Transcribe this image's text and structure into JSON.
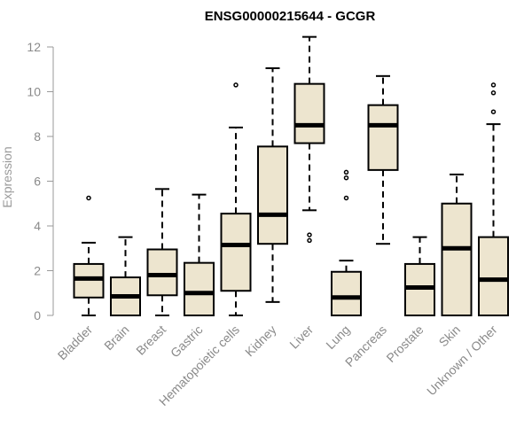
{
  "colors": {
    "box_fill": "#ede5cf",
    "box_stroke": "#000000",
    "axis": "#999999",
    "text": "#8a8a8a"
  },
  "chart_data": {
    "type": "boxplot",
    "title": "ENSG00000215644 - GCGR",
    "ylabel": "Expression",
    "xlabel": "",
    "ylim": [
      0,
      12
    ],
    "yticks": [
      0,
      2,
      4,
      6,
      8,
      10,
      12
    ],
    "grid": false,
    "categories": [
      "Bladder",
      "Brain",
      "Breast",
      "Gastric",
      "Hematopoietic cells",
      "Kidney",
      "Liver",
      "Lung",
      "Pancreas",
      "Prostate",
      "Skin",
      "Unknown / Other"
    ],
    "boxes": [
      {
        "category": "Bladder",
        "whisker_low": 0.0,
        "q1": 0.8,
        "median": 1.65,
        "q3": 2.3,
        "whisker_high": 3.25,
        "outliers": [
          5.25
        ]
      },
      {
        "category": "Brain",
        "whisker_low": 0.0,
        "q1": 0.0,
        "median": 0.85,
        "q3": 1.7,
        "whisker_high": 3.5,
        "outliers": []
      },
      {
        "category": "Breast",
        "whisker_low": 0.0,
        "q1": 0.9,
        "median": 1.8,
        "q3": 2.95,
        "whisker_high": 5.65,
        "outliers": []
      },
      {
        "category": "Gastric",
        "whisker_low": 0.0,
        "q1": 0.0,
        "median": 1.0,
        "q3": 2.35,
        "whisker_high": 5.4,
        "outliers": []
      },
      {
        "category": "Hematopoietic cells",
        "whisker_low": 0.0,
        "q1": 1.1,
        "median": 3.15,
        "q3": 4.55,
        "whisker_high": 8.4,
        "outliers": [
          10.3
        ]
      },
      {
        "category": "Kidney",
        "whisker_low": 0.6,
        "q1": 3.2,
        "median": 4.5,
        "q3": 7.55,
        "whisker_high": 11.05,
        "outliers": []
      },
      {
        "category": "Liver",
        "whisker_low": 4.7,
        "q1": 7.7,
        "median": 8.5,
        "q3": 10.35,
        "whisker_high": 12.45,
        "outliers": [
          3.35,
          3.6
        ]
      },
      {
        "category": "Lung",
        "whisker_low": 0.0,
        "q1": 0.0,
        "median": 0.8,
        "q3": 1.95,
        "whisker_high": 2.45,
        "outliers": [
          5.25,
          6.15,
          6.4
        ]
      },
      {
        "category": "Pancreas",
        "whisker_low": 3.2,
        "q1": 6.5,
        "median": 8.5,
        "q3": 9.4,
        "whisker_high": 10.7,
        "outliers": []
      },
      {
        "category": "Prostate",
        "whisker_low": 0.0,
        "q1": 0.0,
        "median": 1.25,
        "q3": 2.3,
        "whisker_high": 3.5,
        "outliers": []
      },
      {
        "category": "Skin",
        "whisker_low": 0.0,
        "q1": 0.0,
        "median": 3.0,
        "q3": 5.0,
        "whisker_high": 6.3,
        "outliers": []
      },
      {
        "category": "Unknown / Other",
        "whisker_low": 0.0,
        "q1": 0.0,
        "median": 1.6,
        "q3": 3.5,
        "whisker_high": 8.55,
        "outliers": [
          9.1,
          9.95,
          10.3
        ]
      }
    ]
  }
}
